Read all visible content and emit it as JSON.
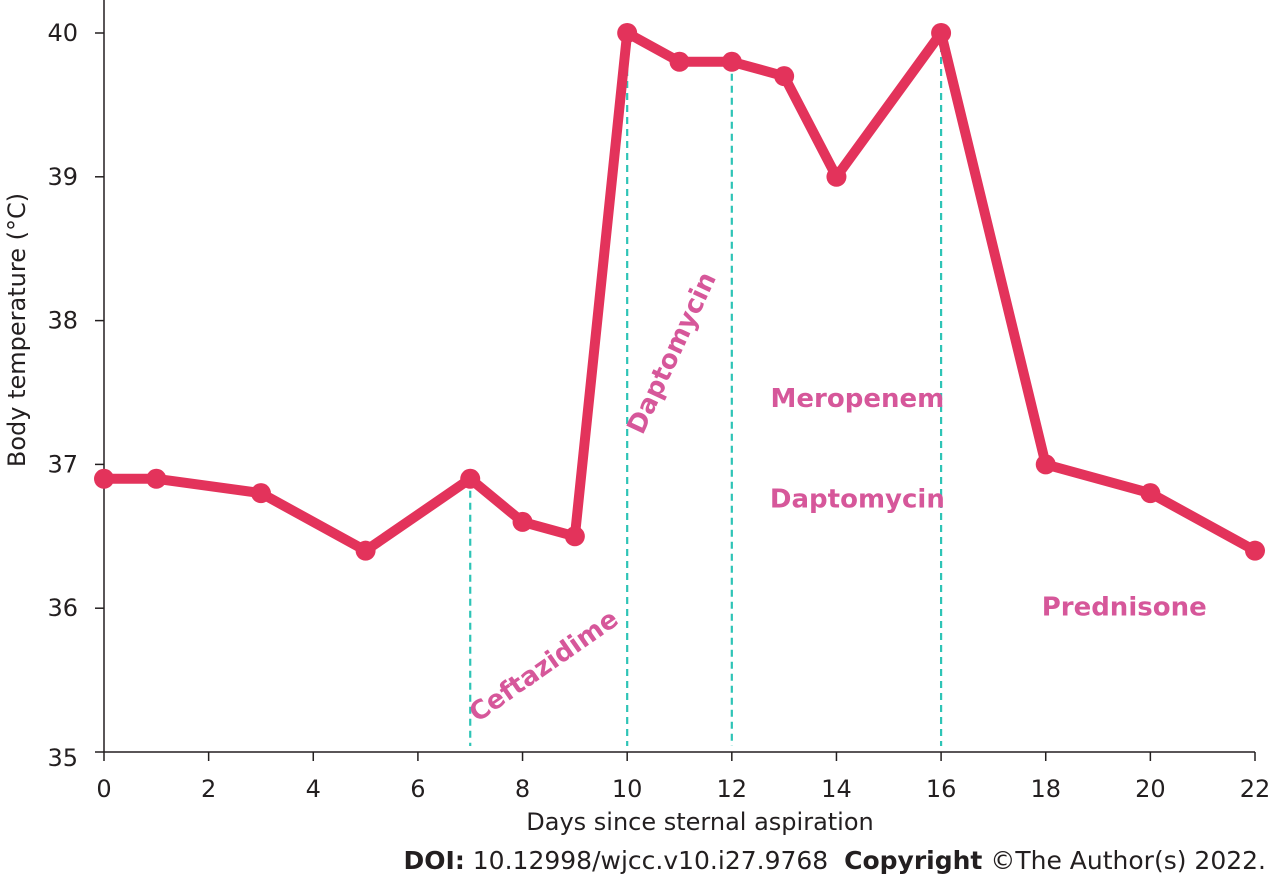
{
  "chart_data": {
    "type": "line",
    "xlabel": "Days since sternal aspiration",
    "ylabel": "Body temperature (°C)",
    "xlim": [
      0,
      22
    ],
    "ylim": [
      35,
      40
    ],
    "x_ticks": [
      "0",
      "2",
      "4",
      "6",
      "8",
      "10",
      "12",
      "14",
      "16",
      "18",
      "20",
      "22"
    ],
    "y_ticks": [
      "35",
      "36",
      "37",
      "38",
      "39",
      "40"
    ],
    "series": [
      {
        "x": [
          0,
          1,
          3,
          5,
          7,
          8,
          9,
          10,
          11,
          12,
          13,
          14,
          16,
          18,
          20,
          22
        ],
        "values": [
          36.9,
          36.9,
          36.8,
          36.4,
          36.9,
          36.6,
          36.5,
          40.0,
          39.8,
          39.8,
          39.7,
          39.0,
          40.0,
          37.0,
          36.8,
          36.4
        ],
        "color": "#e3335b"
      }
    ],
    "vertical_markers": [
      7,
      10,
      12,
      16
    ],
    "marker_color": "#2ec4b6",
    "annotations": [
      {
        "text": "Ceftazidime",
        "x": 8.5,
        "y": 35.55,
        "rotate": -35
      },
      {
        "text": "Daptomycin",
        "x": 11.0,
        "y": 37.75,
        "rotate": -65
      },
      {
        "text": "Meropenem",
        "x": 14.4,
        "y": 37.4
      },
      {
        "text": "Daptomycin",
        "x": 14.4,
        "y": 36.7
      },
      {
        "text": "Prednisone",
        "x": 19.5,
        "y": 35.95
      }
    ],
    "annotation_color": "#d6579a",
    "grid": false
  },
  "footer": {
    "doi_label": "DOI:",
    "doi_value": "10.12998/wjcc.v10.i27.9768",
    "copyright_label": "Copyright",
    "copyright_value": "©The Author(s) 2022."
  }
}
